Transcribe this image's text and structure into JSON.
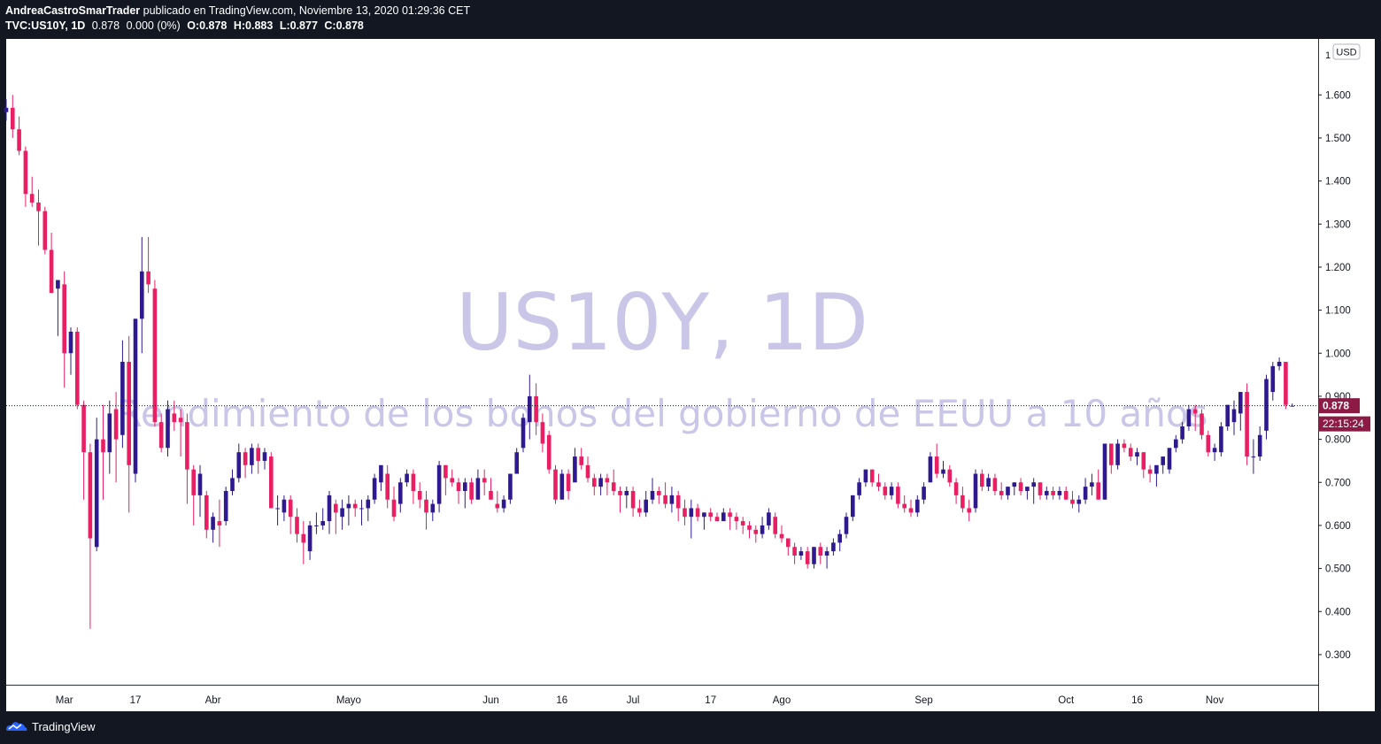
{
  "header": {
    "author": "AndreaCastroSmarTrader",
    "published_text": "publicado en TradingView.com, Noviembre 13, 2020 01:29:36 CET",
    "symbol": "TVC:US10Y, 1D",
    "last": "0.878",
    "change": "0.000 (0%)",
    "open": "O:0.878",
    "high": "H:0.883",
    "low": "L:0.877",
    "close": "C:0.878"
  },
  "watermark": {
    "title": "US10Y, 1D",
    "subtitle": "Rendimiento de los bonos del gobierno de EEUU a 10 años"
  },
  "price_axis": {
    "currency": "USD",
    "top_partial": "1",
    "current_price": "0.878",
    "countdown": "22:15:24"
  },
  "footer": {
    "brand": "TradingView"
  },
  "colors": {
    "up": "#2e1a8e",
    "down": "#e91e63",
    "background": "#131722",
    "plot": "#ffffff",
    "watermark": "#c9c6e8",
    "price_label": "#8c1a45"
  },
  "chart_data": {
    "type": "candlestick",
    "ylim": [
      0.23,
      1.73
    ],
    "yticks": [
      "0.300",
      "0.400",
      "0.500",
      "0.600",
      "0.700",
      "0.800",
      "0.900",
      "1.000",
      "1.100",
      "1.200",
      "1.300",
      "1.400",
      "1.500",
      "1.600"
    ],
    "x_labels": [
      {
        "label": "Mar",
        "index": 9
      },
      {
        "label": "17",
        "index": 20
      },
      {
        "label": "Abr",
        "index": 32
      },
      {
        "label": "Mayo",
        "index": 53
      },
      {
        "label": "Jun",
        "index": 75
      },
      {
        "label": "16",
        "index": 86
      },
      {
        "label": "Jul",
        "index": 97
      },
      {
        "label": "17",
        "index": 109
      },
      {
        "label": "Ago",
        "index": 120
      },
      {
        "label": "Sep",
        "index": 142
      },
      {
        "label": "Oct",
        "index": 164
      },
      {
        "label": "16",
        "index": 175
      },
      {
        "label": "Nov",
        "index": 187
      }
    ],
    "last_price": 0.878,
    "candles": [
      [
        1.56,
        1.59,
        1.54,
        1.57
      ],
      [
        1.57,
        1.6,
        1.5,
        1.52
      ],
      [
        1.52,
        1.55,
        1.46,
        1.47
      ],
      [
        1.47,
        1.48,
        1.34,
        1.37
      ],
      [
        1.37,
        1.41,
        1.34,
        1.35
      ],
      [
        1.35,
        1.38,
        1.25,
        1.33
      ],
      [
        1.33,
        1.34,
        1.23,
        1.24
      ],
      [
        1.24,
        1.28,
        1.14,
        1.14
      ],
      [
        1.15,
        1.16,
        1.04,
        1.17
      ],
      [
        1.16,
        1.19,
        0.92,
        1.0
      ],
      [
        1.0,
        1.06,
        0.95,
        1.05
      ],
      [
        1.05,
        1.06,
        0.87,
        0.88
      ],
      [
        0.88,
        0.89,
        0.66,
        0.77
      ],
      [
        0.77,
        0.79,
        0.36,
        0.57
      ],
      [
        0.55,
        0.85,
        0.54,
        0.8
      ],
      [
        0.8,
        0.88,
        0.66,
        0.77
      ],
      [
        0.77,
        0.89,
        0.72,
        0.86
      ],
      [
        0.87,
        0.91,
        0.7,
        0.8
      ],
      [
        0.81,
        1.03,
        0.78,
        0.98
      ],
      [
        0.98,
        1.04,
        0.63,
        0.74
      ],
      [
        0.72,
        1.08,
        0.7,
        1.08
      ],
      [
        1.08,
        1.27,
        1.0,
        1.19
      ],
      [
        1.19,
        1.27,
        1.14,
        1.16
      ],
      [
        1.15,
        1.17,
        0.83,
        0.84
      ],
      [
        0.84,
        0.86,
        0.77,
        0.78
      ],
      [
        0.78,
        0.89,
        0.76,
        0.87
      ],
      [
        0.86,
        0.89,
        0.82,
        0.84
      ],
      [
        0.85,
        0.87,
        0.76,
        0.84
      ],
      [
        0.84,
        0.86,
        0.65,
        0.73
      ],
      [
        0.73,
        0.74,
        0.6,
        0.67
      ],
      [
        0.67,
        0.74,
        0.62,
        0.72
      ],
      [
        0.67,
        0.68,
        0.57,
        0.59
      ],
      [
        0.59,
        0.63,
        0.56,
        0.62
      ],
      [
        0.61,
        0.66,
        0.55,
        0.6
      ],
      [
        0.61,
        0.69,
        0.6,
        0.68
      ],
      [
        0.68,
        0.73,
        0.67,
        0.71
      ],
      [
        0.71,
        0.79,
        0.7,
        0.77
      ],
      [
        0.77,
        0.78,
        0.71,
        0.74
      ],
      [
        0.74,
        0.79,
        0.72,
        0.78
      ],
      [
        0.78,
        0.79,
        0.72,
        0.75
      ],
      [
        0.75,
        0.78,
        0.73,
        0.77
      ],
      [
        0.76,
        0.77,
        0.64,
        0.64
      ],
      [
        0.64,
        0.67,
        0.6,
        0.64
      ],
      [
        0.63,
        0.67,
        0.61,
        0.66
      ],
      [
        0.66,
        0.67,
        0.58,
        0.62
      ],
      [
        0.62,
        0.64,
        0.56,
        0.58
      ],
      [
        0.58,
        0.61,
        0.51,
        0.56
      ],
      [
        0.54,
        0.61,
        0.52,
        0.6
      ],
      [
        0.6,
        0.63,
        0.58,
        0.6
      ],
      [
        0.6,
        0.64,
        0.59,
        0.61
      ],
      [
        0.61,
        0.68,
        0.58,
        0.67
      ],
      [
        0.65,
        0.66,
        0.58,
        0.63
      ],
      [
        0.62,
        0.66,
        0.59,
        0.64
      ],
      [
        0.64,
        0.67,
        0.6,
        0.65
      ],
      [
        0.65,
        0.66,
        0.62,
        0.64
      ],
      [
        0.64,
        0.66,
        0.6,
        0.64
      ],
      [
        0.64,
        0.67,
        0.61,
        0.66
      ],
      [
        0.66,
        0.72,
        0.65,
        0.71
      ],
      [
        0.7,
        0.74,
        0.68,
        0.74
      ],
      [
        0.72,
        0.74,
        0.64,
        0.66
      ],
      [
        0.66,
        0.69,
        0.61,
        0.62
      ],
      [
        0.65,
        0.71,
        0.63,
        0.7
      ],
      [
        0.7,
        0.73,
        0.69,
        0.72
      ],
      [
        0.72,
        0.73,
        0.65,
        0.68
      ],
      [
        0.68,
        0.7,
        0.64,
        0.66
      ],
      [
        0.66,
        0.68,
        0.59,
        0.63
      ],
      [
        0.63,
        0.66,
        0.61,
        0.65
      ],
      [
        0.65,
        0.75,
        0.63,
        0.74
      ],
      [
        0.74,
        0.74,
        0.67,
        0.71
      ],
      [
        0.71,
        0.73,
        0.69,
        0.7
      ],
      [
        0.7,
        0.71,
        0.65,
        0.68
      ],
      [
        0.68,
        0.71,
        0.64,
        0.7
      ],
      [
        0.7,
        0.71,
        0.65,
        0.66
      ],
      [
        0.66,
        0.73,
        0.66,
        0.71
      ],
      [
        0.71,
        0.73,
        0.67,
        0.7
      ],
      [
        0.68,
        0.71,
        0.66,
        0.66
      ],
      [
        0.65,
        0.68,
        0.63,
        0.64
      ],
      [
        0.64,
        0.67,
        0.63,
        0.66
      ],
      [
        0.66,
        0.72,
        0.65,
        0.72
      ],
      [
        0.72,
        0.78,
        0.72,
        0.77
      ],
      [
        0.78,
        0.86,
        0.77,
        0.85
      ],
      [
        0.84,
        0.95,
        0.8,
        0.9
      ],
      [
        0.9,
        0.93,
        0.81,
        0.84
      ],
      [
        0.84,
        0.86,
        0.77,
        0.79
      ],
      [
        0.81,
        0.82,
        0.72,
        0.73
      ],
      [
        0.73,
        0.74,
        0.65,
        0.66
      ],
      [
        0.66,
        0.73,
        0.66,
        0.72
      ],
      [
        0.72,
        0.73,
        0.66,
        0.68
      ],
      [
        0.7,
        0.78,
        0.7,
        0.76
      ],
      [
        0.76,
        0.78,
        0.73,
        0.74
      ],
      [
        0.74,
        0.76,
        0.7,
        0.71
      ],
      [
        0.71,
        0.72,
        0.67,
        0.69
      ],
      [
        0.69,
        0.72,
        0.67,
        0.71
      ],
      [
        0.71,
        0.72,
        0.67,
        0.7
      ],
      [
        0.7,
        0.73,
        0.67,
        0.68
      ],
      [
        0.68,
        0.69,
        0.63,
        0.67
      ],
      [
        0.67,
        0.69,
        0.64,
        0.68
      ],
      [
        0.68,
        0.69,
        0.62,
        0.64
      ],
      [
        0.64,
        0.66,
        0.62,
        0.63
      ],
      [
        0.63,
        0.68,
        0.62,
        0.66
      ],
      [
        0.66,
        0.71,
        0.65,
        0.68
      ],
      [
        0.68,
        0.69,
        0.65,
        0.67
      ],
      [
        0.67,
        0.7,
        0.64,
        0.65
      ],
      [
        0.65,
        0.69,
        0.63,
        0.67
      ],
      [
        0.67,
        0.68,
        0.61,
        0.64
      ],
      [
        0.64,
        0.66,
        0.6,
        0.62
      ],
      [
        0.62,
        0.66,
        0.57,
        0.64
      ],
      [
        0.64,
        0.65,
        0.61,
        0.62
      ],
      [
        0.62,
        0.63,
        0.59,
        0.63
      ],
      [
        0.63,
        0.64,
        0.61,
        0.62
      ],
      [
        0.62,
        0.63,
        0.61,
        0.61
      ],
      [
        0.61,
        0.64,
        0.61,
        0.63
      ],
      [
        0.63,
        0.64,
        0.59,
        0.62
      ],
      [
        0.62,
        0.63,
        0.59,
        0.61
      ],
      [
        0.61,
        0.62,
        0.58,
        0.6
      ],
      [
        0.6,
        0.61,
        0.57,
        0.59
      ],
      [
        0.59,
        0.6,
        0.56,
        0.58
      ],
      [
        0.58,
        0.62,
        0.57,
        0.6
      ],
      [
        0.6,
        0.64,
        0.59,
        0.63
      ],
      [
        0.62,
        0.63,
        0.57,
        0.58
      ],
      [
        0.58,
        0.6,
        0.56,
        0.57
      ],
      [
        0.57,
        0.57,
        0.53,
        0.55
      ],
      [
        0.55,
        0.56,
        0.51,
        0.53
      ],
      [
        0.53,
        0.55,
        0.52,
        0.54
      ],
      [
        0.54,
        0.55,
        0.5,
        0.51
      ],
      [
        0.51,
        0.55,
        0.5,
        0.55
      ],
      [
        0.55,
        0.56,
        0.51,
        0.53
      ],
      [
        0.53,
        0.55,
        0.5,
        0.54
      ],
      [
        0.54,
        0.57,
        0.53,
        0.56
      ],
      [
        0.56,
        0.59,
        0.54,
        0.58
      ],
      [
        0.58,
        0.63,
        0.57,
        0.62
      ],
      [
        0.62,
        0.67,
        0.61,
        0.67
      ],
      [
        0.67,
        0.71,
        0.66,
        0.7
      ],
      [
        0.7,
        0.73,
        0.69,
        0.73
      ],
      [
        0.73,
        0.73,
        0.69,
        0.7
      ],
      [
        0.7,
        0.72,
        0.68,
        0.69
      ],
      [
        0.69,
        0.7,
        0.66,
        0.67
      ],
      [
        0.67,
        0.7,
        0.66,
        0.69
      ],
      [
        0.69,
        0.7,
        0.64,
        0.65
      ],
      [
        0.65,
        0.67,
        0.63,
        0.64
      ],
      [
        0.64,
        0.66,
        0.62,
        0.63
      ],
      [
        0.63,
        0.67,
        0.62,
        0.66
      ],
      [
        0.66,
        0.7,
        0.65,
        0.69
      ],
      [
        0.7,
        0.77,
        0.7,
        0.76
      ],
      [
        0.76,
        0.79,
        0.71,
        0.72
      ],
      [
        0.72,
        0.75,
        0.71,
        0.73
      ],
      [
        0.73,
        0.74,
        0.69,
        0.7
      ],
      [
        0.7,
        0.71,
        0.65,
        0.67
      ],
      [
        0.67,
        0.69,
        0.63,
        0.64
      ],
      [
        0.64,
        0.66,
        0.61,
        0.63
      ],
      [
        0.64,
        0.73,
        0.63,
        0.72
      ],
      [
        0.72,
        0.73,
        0.68,
        0.69
      ],
      [
        0.69,
        0.72,
        0.68,
        0.71
      ],
      [
        0.71,
        0.72,
        0.67,
        0.68
      ],
      [
        0.68,
        0.7,
        0.66,
        0.67
      ],
      [
        0.67,
        0.69,
        0.66,
        0.69
      ],
      [
        0.69,
        0.7,
        0.67,
        0.7
      ],
      [
        0.7,
        0.71,
        0.67,
        0.68
      ],
      [
        0.68,
        0.69,
        0.66,
        0.69
      ],
      [
        0.69,
        0.71,
        0.65,
        0.7
      ],
      [
        0.7,
        0.7,
        0.66,
        0.67
      ],
      [
        0.67,
        0.69,
        0.66,
        0.68
      ],
      [
        0.68,
        0.69,
        0.66,
        0.67
      ],
      [
        0.67,
        0.69,
        0.66,
        0.68
      ],
      [
        0.68,
        0.69,
        0.66,
        0.66
      ],
      [
        0.66,
        0.68,
        0.64,
        0.65
      ],
      [
        0.65,
        0.67,
        0.63,
        0.66
      ],
      [
        0.66,
        0.71,
        0.65,
        0.69
      ],
      [
        0.69,
        0.72,
        0.67,
        0.7
      ],
      [
        0.7,
        0.73,
        0.66,
        0.66
      ],
      [
        0.66,
        0.79,
        0.66,
        0.79
      ],
      [
        0.79,
        0.79,
        0.72,
        0.74
      ],
      [
        0.74,
        0.8,
        0.73,
        0.79
      ],
      [
        0.79,
        0.8,
        0.77,
        0.78
      ],
      [
        0.78,
        0.79,
        0.75,
        0.76
      ],
      [
        0.76,
        0.78,
        0.74,
        0.77
      ],
      [
        0.77,
        0.77,
        0.71,
        0.73
      ],
      [
        0.73,
        0.74,
        0.7,
        0.72
      ],
      [
        0.72,
        0.74,
        0.69,
        0.74
      ],
      [
        0.74,
        0.76,
        0.72,
        0.76
      ],
      [
        0.73,
        0.78,
        0.72,
        0.78
      ],
      [
        0.78,
        0.81,
        0.77,
        0.8
      ],
      [
        0.8,
        0.84,
        0.79,
        0.83
      ],
      [
        0.83,
        0.88,
        0.82,
        0.87
      ],
      [
        0.87,
        0.88,
        0.82,
        0.86
      ],
      [
        0.86,
        0.87,
        0.8,
        0.81
      ],
      [
        0.81,
        0.82,
        0.76,
        0.77
      ],
      [
        0.77,
        0.79,
        0.75,
        0.78
      ],
      [
        0.77,
        0.84,
        0.76,
        0.83
      ],
      [
        0.83,
        0.88,
        0.82,
        0.88
      ],
      [
        0.84,
        0.89,
        0.81,
        0.87
      ],
      [
        0.86,
        0.91,
        0.82,
        0.91
      ],
      [
        0.91,
        0.93,
        0.74,
        0.76
      ],
      [
        0.76,
        0.8,
        0.72,
        0.76
      ],
      [
        0.76,
        0.83,
        0.75,
        0.81
      ],
      [
        0.82,
        0.95,
        0.8,
        0.94
      ],
      [
        0.91,
        0.98,
        0.89,
        0.97
      ],
      [
        0.97,
        0.99,
        0.96,
        0.98
      ],
      [
        0.98,
        0.98,
        0.87,
        0.88
      ],
      [
        0.878,
        0.883,
        0.877,
        0.878
      ]
    ]
  }
}
